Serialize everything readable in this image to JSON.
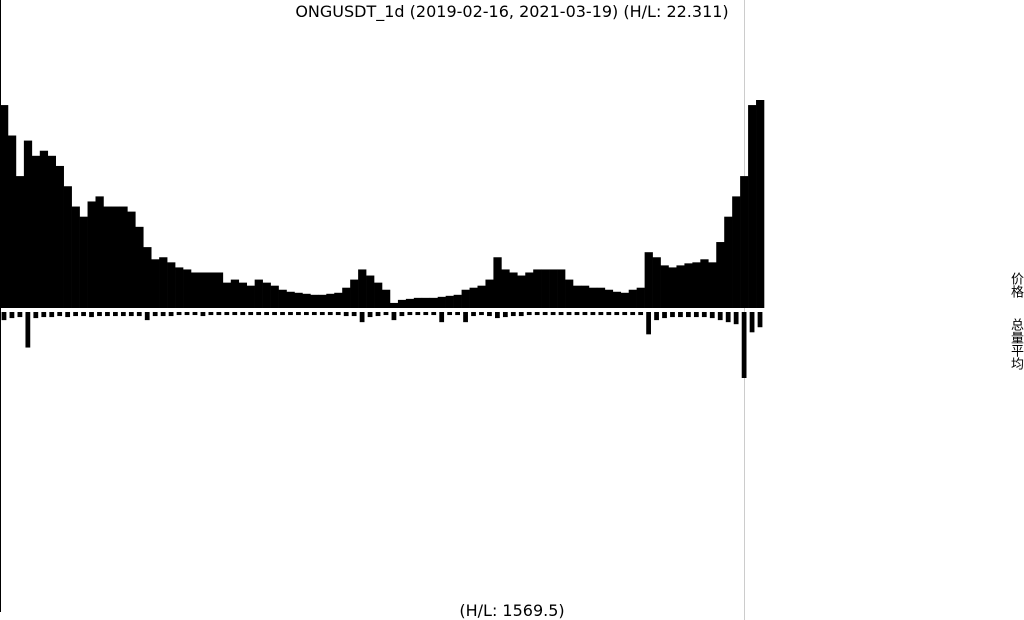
{
  "chart_data": {
    "type": "price-volume",
    "title": "ONGUSDT_1d (2019-02-16, 2021-03-19) (H/L: 22.311)",
    "volume_title": "(H/L: 1569.5)",
    "price_label": "价格",
    "volume_label": "总量平均",
    "color": "#000000",
    "series": [
      {
        "name": "价格",
        "values": [
          200,
          170,
          130,
          165,
          150,
          155,
          150,
          140,
          120,
          100,
          90,
          105,
          110,
          100,
          100,
          100,
          95,
          80,
          60,
          48,
          50,
          45,
          40,
          38,
          35,
          35,
          35,
          35,
          25,
          28,
          25,
          22,
          28,
          25,
          22,
          18,
          16,
          15,
          14,
          13,
          13,
          14,
          15,
          20,
          28,
          38,
          32,
          25,
          18,
          5,
          8,
          9,
          10,
          10,
          10,
          11,
          12,
          13,
          18,
          20,
          22,
          28,
          50,
          38,
          35,
          32,
          35,
          38,
          38,
          38,
          38,
          28,
          22,
          22,
          20,
          20,
          18,
          16,
          15,
          18,
          20,
          55,
          50,
          42,
          40,
          42,
          44,
          45,
          48,
          45,
          65,
          90,
          110,
          130,
          200,
          205
        ]
      },
      {
        "name": "总量平均",
        "values": [
          8,
          6,
          5,
          35,
          6,
          5,
          5,
          4,
          5,
          4,
          4,
          5,
          4,
          4,
          4,
          4,
          4,
          4,
          8,
          4,
          4,
          4,
          3,
          3,
          3,
          4,
          3,
          3,
          3,
          3,
          3,
          3,
          3,
          3,
          3,
          3,
          3,
          3,
          3,
          3,
          3,
          3,
          3,
          4,
          4,
          10,
          5,
          4,
          3,
          8,
          4,
          3,
          3,
          3,
          3,
          10,
          3,
          3,
          10,
          4,
          3,
          4,
          6,
          5,
          4,
          4,
          3,
          3,
          3,
          3,
          3,
          3,
          3,
          3,
          3,
          3,
          3,
          3,
          3,
          3,
          3,
          22,
          8,
          6,
          5,
          5,
          5,
          5,
          5,
          6,
          8,
          10,
          12,
          65,
          20,
          15
        ]
      }
    ]
  }
}
